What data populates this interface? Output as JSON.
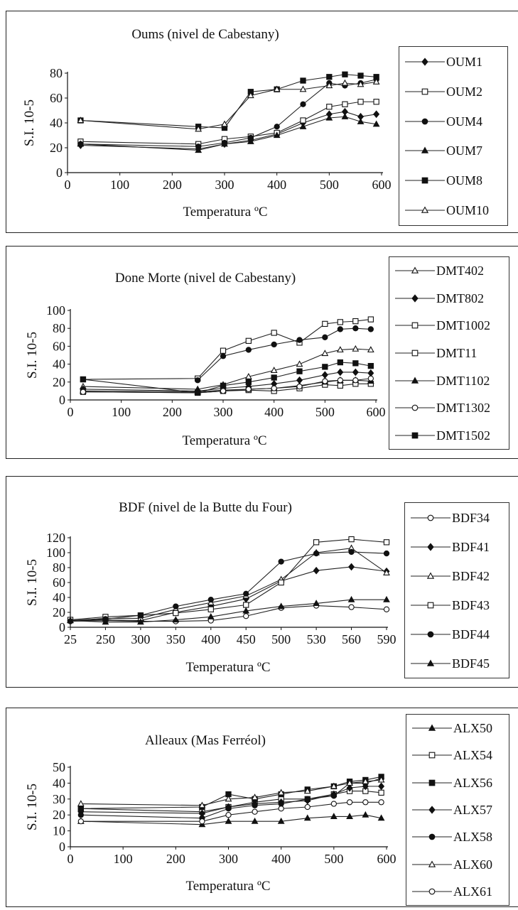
{
  "chart_data": [
    {
      "type": "line",
      "title": "Oums (nivel de Cabestany)",
      "xlabel": "Temperatura ºC",
      "ylabel": "S.I. 10-5",
      "xaxis": "linear",
      "xlim": [
        0,
        600
      ],
      "xticks": [
        0,
        100,
        200,
        300,
        400,
        500,
        600
      ],
      "ylim": [
        0,
        80
      ],
      "yticks": [
        0,
        20,
        40,
        60,
        80
      ],
      "legend": "right",
      "series": [
        {
          "name": "OUM1",
          "marker": "diamond-filled",
          "x": [
            25,
            250,
            300,
            350,
            400,
            450,
            500,
            530,
            560,
            590
          ],
          "y": [
            22,
            19,
            23,
            26,
            31,
            40,
            47,
            49,
            45,
            47
          ]
        },
        {
          "name": "OUM2",
          "marker": "square-open",
          "x": [
            25,
            250,
            300,
            350,
            400,
            450,
            500,
            530,
            560,
            590
          ],
          "y": [
            25,
            23,
            27,
            29,
            32,
            42,
            53,
            55,
            57,
            57
          ]
        },
        {
          "name": "OUM4",
          "marker": "circle-filled",
          "x": [
            25,
            250,
            300,
            350,
            400,
            450,
            500,
            530,
            560,
            590
          ],
          "y": [
            23,
            21,
            24,
            28,
            37,
            55,
            72,
            70,
            72,
            75
          ]
        },
        {
          "name": "OUM7",
          "marker": "triangle-filled",
          "x": [
            25,
            250,
            300,
            350,
            400,
            450,
            500,
            530,
            560,
            590
          ],
          "y": [
            23,
            18,
            23,
            25,
            30,
            37,
            44,
            45,
            41,
            39
          ]
        },
        {
          "name": "OUM8",
          "marker": "square-filled",
          "x": [
            25,
            250,
            300,
            350,
            400,
            450,
            500,
            530,
            560,
            590
          ],
          "y": [
            42,
            37,
            36,
            65,
            67,
            74,
            77,
            79,
            78,
            77
          ]
        },
        {
          "name": "OUM10",
          "marker": "triangle-open",
          "x": [
            25,
            250,
            300,
            350,
            400,
            450,
            500,
            530,
            560,
            590
          ],
          "y": [
            42,
            35,
            39,
            62,
            67,
            67,
            70,
            72,
            71,
            73
          ]
        }
      ]
    },
    {
      "type": "line",
      "title": "Done Morte (nivel de Cabestany)",
      "xlabel": "Temperatura ºC",
      "ylabel": "S.I. 10-5",
      "xaxis": "linear",
      "xlim": [
        0,
        600
      ],
      "xticks": [
        0,
        100,
        200,
        300,
        400,
        500,
        600
      ],
      "ylim": [
        0,
        100
      ],
      "yticks": [
        0,
        20,
        40,
        60,
        80,
        100
      ],
      "legend": "right",
      "series": [
        {
          "name": "DMT402",
          "marker": "triangle-open",
          "x": [
            25,
            250,
            300,
            350,
            400,
            450,
            500,
            530,
            560,
            590
          ],
          "y": [
            15,
            12,
            17,
            26,
            33,
            40,
            52,
            56,
            57,
            56
          ]
        },
        {
          "name": "DMT802",
          "marker": "diamond-filled",
          "x": [
            25,
            250,
            300,
            350,
            400,
            450,
            500,
            530,
            560,
            590
          ],
          "y": [
            12,
            10,
            13,
            15,
            18,
            22,
            28,
            31,
            31,
            30
          ]
        },
        {
          "name": "DMT1002",
          "marker": "square-open",
          "x": [
            25,
            250,
            300,
            350,
            400,
            450,
            500,
            530,
            560,
            590
          ],
          "y": [
            23,
            24,
            55,
            66,
            75,
            64,
            85,
            87,
            88,
            90
          ]
        },
        {
          "name": "DMT11",
          "marker": "square-open",
          "x": [
            25,
            250,
            300,
            350,
            400,
            450,
            500,
            530,
            560,
            590
          ],
          "y": [
            9,
            8,
            10,
            11,
            10,
            13,
            17,
            16,
            18,
            18
          ]
        },
        {
          "name": "DMT1102",
          "marker": "triangle-filled",
          "x": [
            25,
            250,
            300,
            350,
            400,
            450,
            500,
            530,
            560,
            590
          ],
          "y": [
            10,
            9,
            11,
            12,
            13,
            16,
            20,
            22,
            22,
            21
          ]
        },
        {
          "name": "DMT1302",
          "marker": "circle-open",
          "x": [
            25,
            250,
            300,
            350,
            400,
            450,
            500,
            530,
            560,
            590
          ],
          "y": [
            9,
            8,
            10,
            12,
            13,
            15,
            21,
            22,
            22,
            24
          ]
        },
        {
          "name": "DMT1502",
          "marker": "square-filled",
          "x": [
            25,
            250,
            300,
            350,
            400,
            450,
            500,
            530,
            560,
            590
          ],
          "y": [
            23,
            8,
            16,
            20,
            25,
            32,
            37,
            42,
            41,
            38
          ]
        },
        {
          "name": "",
          "marker": "circle-filled",
          "x": [
            250,
            300,
            350,
            400,
            450,
            500,
            530,
            560,
            590
          ],
          "y": [
            22,
            49,
            56,
            62,
            67,
            70,
            79,
            80,
            79
          ]
        }
      ]
    },
    {
      "type": "line",
      "title": "BDF (nivel de la Butte du Four)",
      "xlabel": "Temperatura ºC",
      "ylabel": "S.I. 10-5",
      "xaxis": "categorical",
      "categories": [
        "25",
        "250",
        "300",
        "350",
        "400",
        "450",
        "500",
        "530",
        "560",
        "590"
      ],
      "ylim": [
        0,
        120
      ],
      "yticks": [
        0,
        20,
        40,
        60,
        80,
        100,
        120
      ],
      "legend": "right",
      "series": [
        {
          "name": "BDF34",
          "marker": "circle-open",
          "values": [
            8,
            9,
            8,
            8,
            9,
            15,
            26,
            29,
            27,
            24
          ]
        },
        {
          "name": "BDF41",
          "marker": "diamond-filled",
          "values": [
            9,
            10,
            9,
            20,
            28,
            38,
            62,
            76,
            81,
            75
          ]
        },
        {
          "name": "BDF42",
          "marker": "triangle-open",
          "values": [
            9,
            12,
            12,
            24,
            33,
            42,
            64,
            100,
            106,
            73
          ]
        },
        {
          "name": "BDF43",
          "marker": "square-open",
          "values": [
            10,
            14,
            16,
            19,
            24,
            30,
            60,
            114,
            118,
            114
          ]
        },
        {
          "name": "BDF44",
          "marker": "circle-filled",
          "values": [
            8,
            11,
            16,
            28,
            37,
            45,
            88,
            99,
            101,
            99
          ]
        },
        {
          "name": "BDF45",
          "marker": "triangle-filled",
          "values": [
            9,
            7,
            7,
            10,
            14,
            22,
            28,
            32,
            37,
            37
          ]
        }
      ]
    },
    {
      "type": "line",
      "title": "Alleaux (Mas Ferréol)",
      "xlabel": "Temperatura ºC",
      "ylabel": "S.I. 10-5",
      "xaxis": "linear",
      "xlim": [
        0,
        600
      ],
      "xticks": [
        0,
        100,
        200,
        300,
        400,
        500,
        600
      ],
      "ylim": [
        0,
        50
      ],
      "yticks": [
        0,
        10,
        20,
        30,
        40,
        50
      ],
      "legend": "right",
      "series": [
        {
          "name": "ALX50",
          "marker": "triangle-filled",
          "x": [
            20,
            250,
            300,
            350,
            400,
            450,
            500,
            530,
            560,
            590
          ],
          "y": [
            16,
            14,
            16,
            16,
            16,
            18,
            19,
            19,
            20,
            18
          ]
        },
        {
          "name": "ALX54",
          "marker": "square-open",
          "x": [
            20,
            250,
            300,
            350,
            400,
            450,
            500,
            530,
            560,
            590
          ],
          "y": [
            24,
            22,
            25,
            28,
            30,
            30,
            33,
            35,
            35,
            34
          ]
        },
        {
          "name": "ALX56",
          "marker": "square-filled",
          "x": [
            20,
            250,
            300,
            350,
            400,
            450,
            500,
            530,
            560,
            590
          ],
          "y": [
            24,
            25,
            33,
            30,
            33,
            36,
            38,
            41,
            42,
            44
          ]
        },
        {
          "name": "ALX57",
          "marker": "diamond-filled",
          "x": [
            20,
            250,
            300,
            350,
            400,
            450,
            500,
            530,
            560,
            590
          ],
          "y": [
            22,
            21,
            25,
            27,
            28,
            29,
            33,
            37,
            38,
            38
          ]
        },
        {
          "name": "ALX58",
          "marker": "circle-filled",
          "x": [
            20,
            250,
            300,
            350,
            400,
            450,
            500,
            530,
            560,
            590
          ],
          "y": [
            20,
            18,
            24,
            26,
            27,
            30,
            32,
            40,
            40,
            43
          ]
        },
        {
          "name": "ALX60",
          "marker": "triangle-open",
          "x": [
            20,
            250,
            300,
            350,
            400,
            450,
            500,
            530,
            560,
            590
          ],
          "y": [
            27,
            26,
            30,
            31,
            34,
            35,
            38,
            40,
            41,
            42
          ]
        },
        {
          "name": "ALX61",
          "marker": "circle-open",
          "x": [
            20,
            250,
            300,
            350,
            400,
            450,
            500,
            530,
            560,
            590
          ],
          "y": [
            16,
            16,
            20,
            22,
            24,
            25,
            27,
            28,
            28,
            28
          ]
        }
      ]
    }
  ]
}
